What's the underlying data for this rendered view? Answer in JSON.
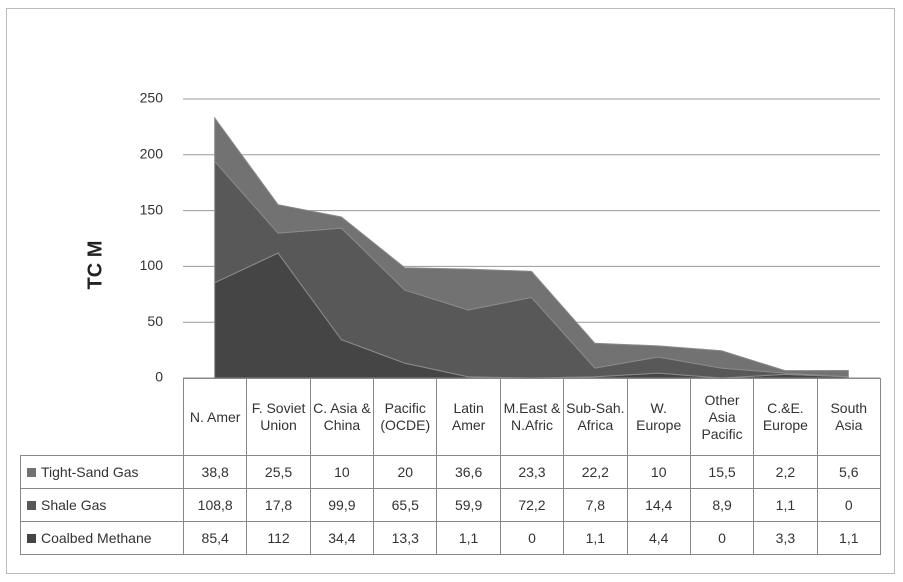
{
  "chart_data": {
    "type": "stacked-area",
    "y_label": "TC M",
    "categories": [
      "N. Amer",
      "F. Soviet Union",
      "C. Asia & China",
      "Pacific (OCDE)",
      "Latin Amer",
      "M.East & N.Afric",
      "Sub-Sah. Africa",
      "W. Europe",
      "Other Asia Pacific",
      "C.&E. Europe",
      "South Asia"
    ],
    "series": [
      {
        "name": "Tight-Sand Gas",
        "color": "#727272",
        "values": [
          38.8,
          25.5,
          10,
          20,
          36.6,
          23.3,
          22.2,
          10,
          15.5,
          2.2,
          5.6
        ],
        "value_labels": [
          "38,8",
          "25,5",
          "10",
          "20",
          "36,6",
          "23,3",
          "22,2",
          "10",
          "15,5",
          "2,2",
          "5,6"
        ]
      },
      {
        "name": "Shale Gas",
        "color": "#585858",
        "values": [
          108.8,
          17.8,
          99.9,
          65.5,
          59.9,
          72.2,
          7.8,
          14.4,
          8.9,
          1.1,
          0
        ],
        "value_labels": [
          "108,8",
          "17,8",
          "99,9",
          "65,5",
          "59,9",
          "72,2",
          "7,8",
          "14,4",
          "8,9",
          "1,1",
          "0"
        ]
      },
      {
        "name": "Coalbed Methane",
        "color": "#454545",
        "values": [
          85.4,
          112,
          34.4,
          13.3,
          1.1,
          0,
          1.1,
          4.4,
          0,
          3.3,
          1.1
        ],
        "value_labels": [
          "85,4",
          "112",
          "34,4",
          "13,3",
          "1,1",
          "0",
          "1,1",
          "4,4",
          "0",
          "3,3",
          "1,1"
        ]
      }
    ],
    "ylim": [
      0,
      250
    ],
    "yticks": [
      0,
      50,
      100,
      150,
      200,
      250
    ],
    "grid": true,
    "stack_order": "bottom-up-from-last"
  }
}
